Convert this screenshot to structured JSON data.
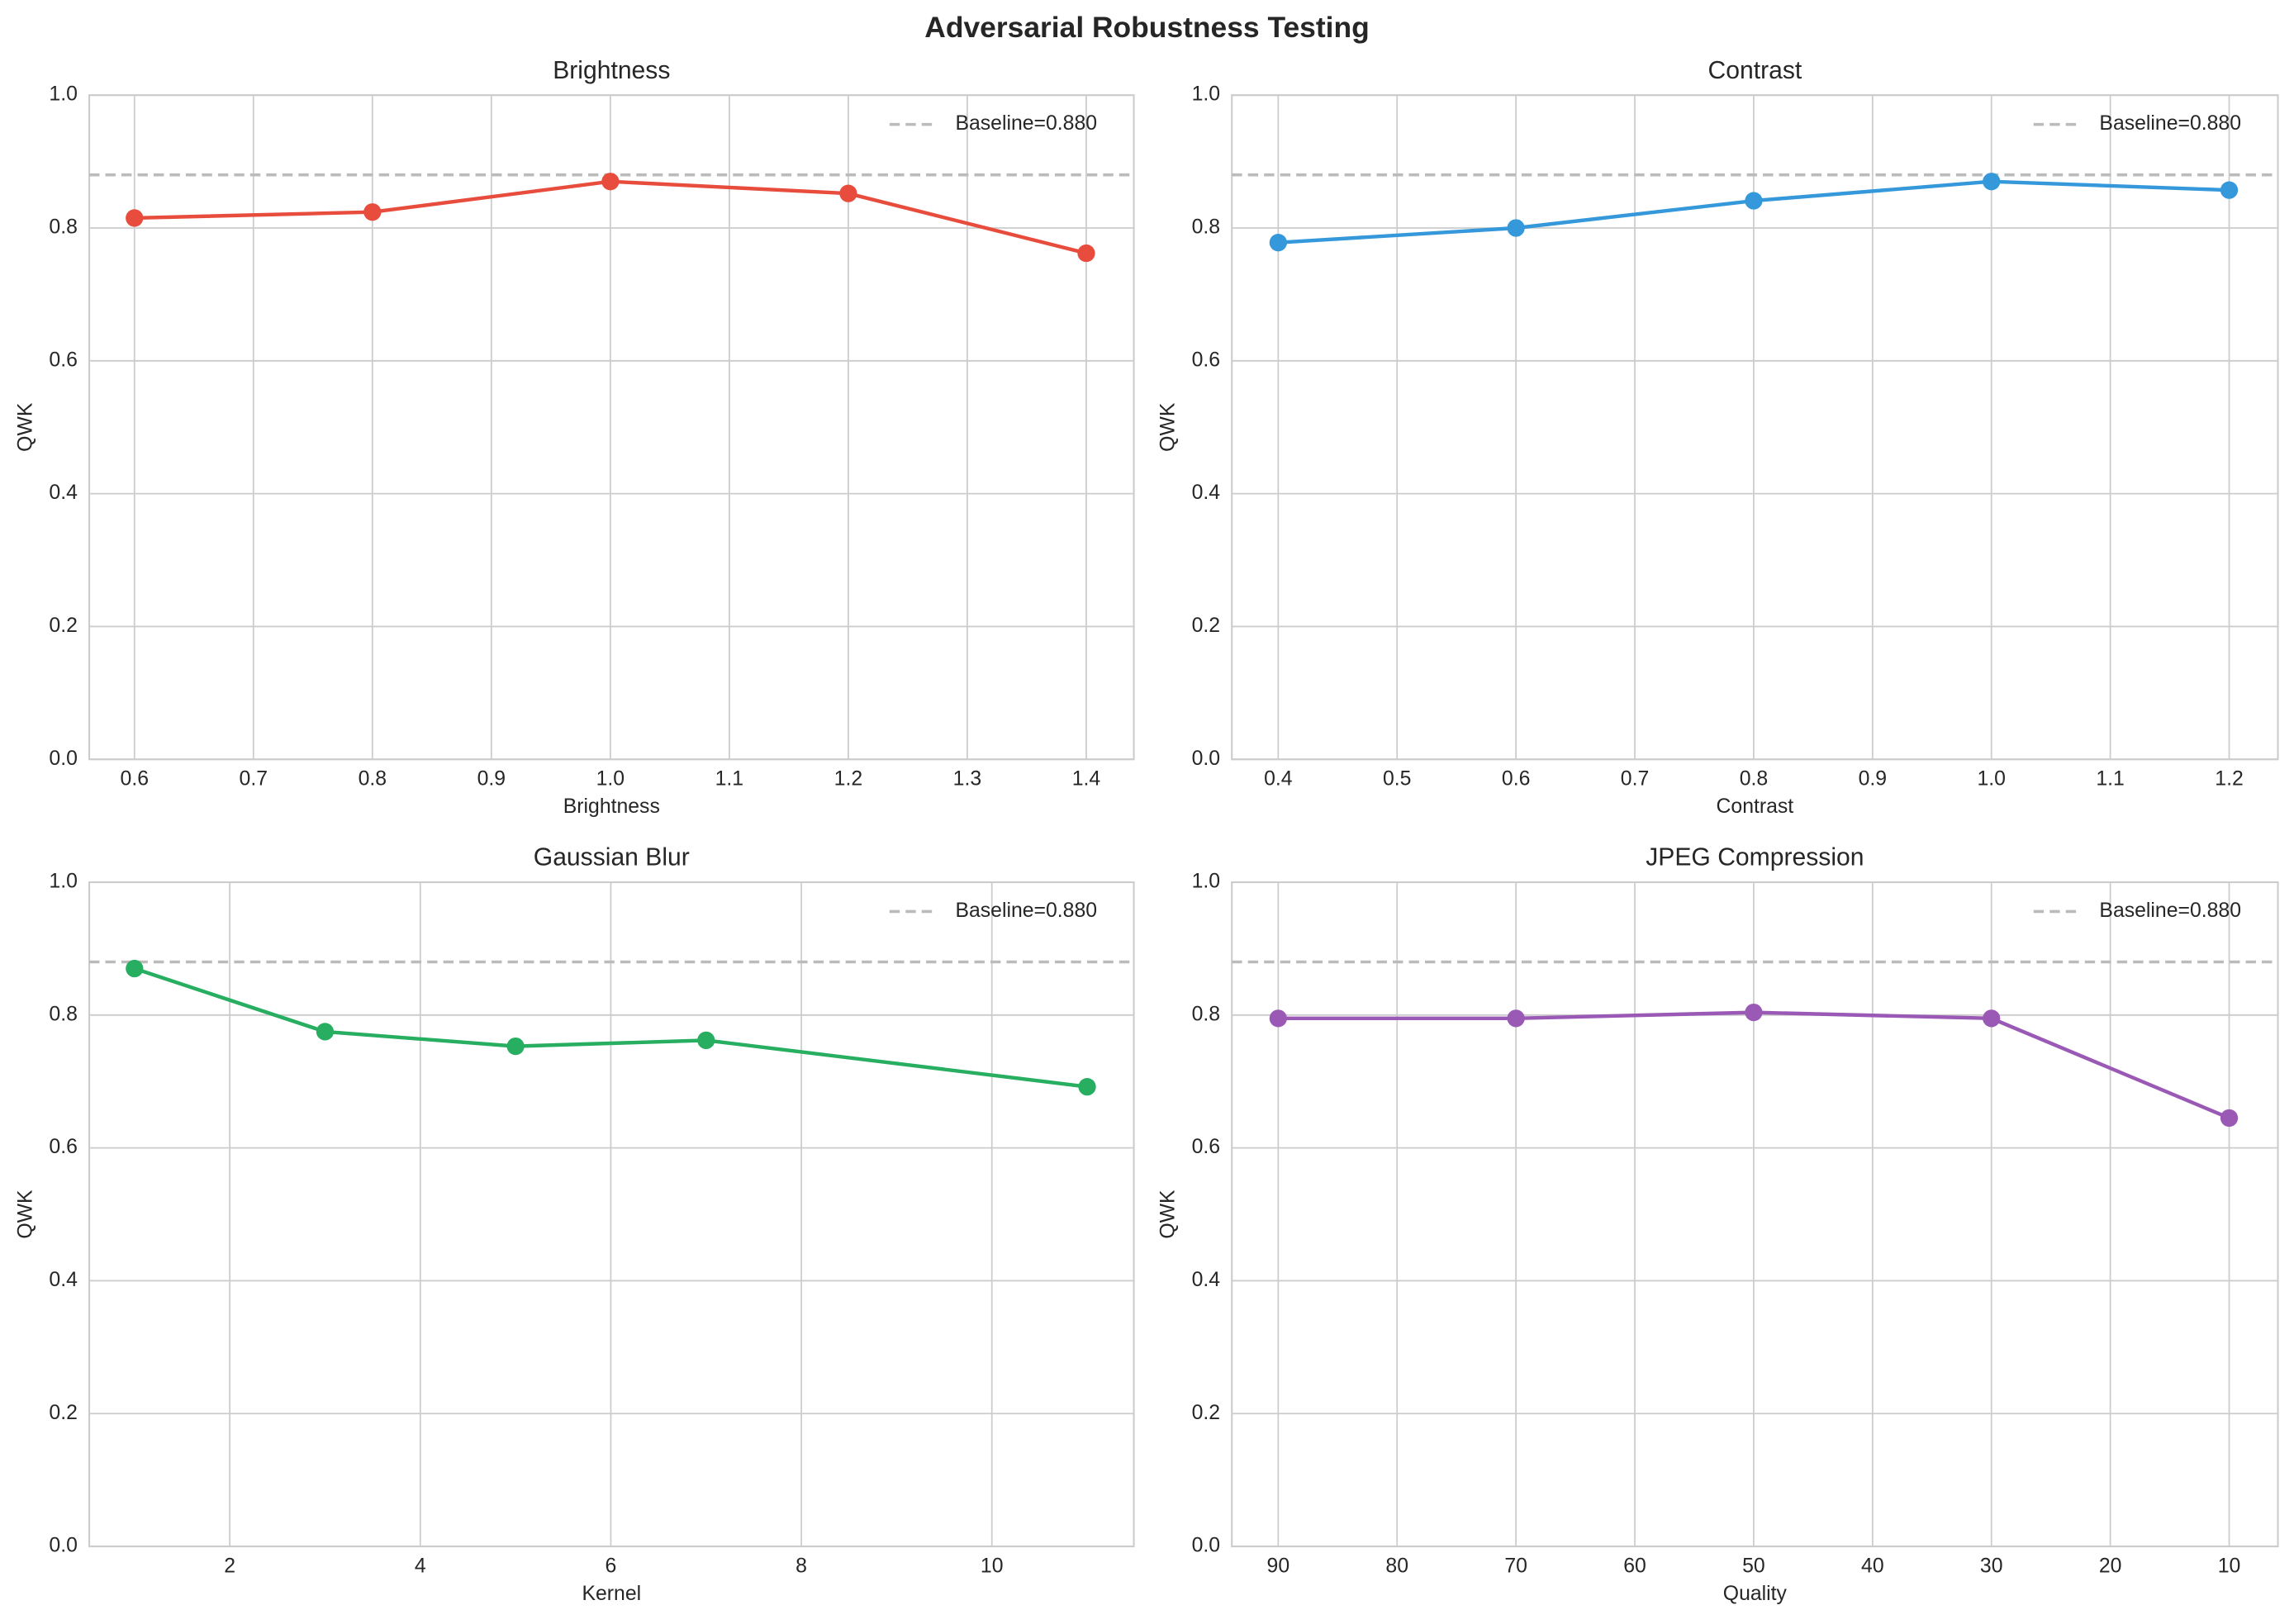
{
  "title": "Adversarial Robustness Testing",
  "chart_data": [
    {
      "type": "line",
      "title": "Brightness",
      "xlabel": "Brightness",
      "ylabel": "QWK",
      "x": [
        0.6,
        0.8,
        1.0,
        1.2,
        1.4
      ],
      "series": [
        {
          "color": "#e74c3c",
          "values": [
            0.815,
            0.824,
            0.87,
            0.852,
            0.762
          ]
        }
      ],
      "hline": {
        "name": "Baseline=0.880",
        "value": 0.88,
        "color": "#bbbbbb"
      },
      "xlim": [
        0.562,
        1.44
      ],
      "xticks": [
        0.6,
        0.7,
        0.8,
        0.9,
        {
          "value": 1.0,
          "label": "1.0"
        },
        1.1,
        1.2,
        1.3,
        1.4
      ],
      "ylim": [
        0,
        1
      ],
      "yticks": [
        {
          "value": 0,
          "label": "0.0"
        },
        0.2,
        0.4,
        0.6,
        0.8,
        {
          "value": 1,
          "label": "1.0"
        }
      ],
      "grid": true,
      "legend": "upper right"
    },
    {
      "type": "line",
      "title": "Contrast",
      "xlabel": "Contrast",
      "ylabel": "QWK",
      "x": [
        0.4,
        0.6,
        0.8,
        1.0,
        1.2
      ],
      "series": [
        {
          "color": "#3498db",
          "values": [
            0.778,
            0.8,
            0.841,
            0.87,
            0.857
          ]
        }
      ],
      "hline": {
        "name": "Baseline=0.880",
        "value": 0.88,
        "color": "#bbbbbb"
      },
      "xlim": [
        0.361,
        1.241
      ],
      "xticks": [
        0.4,
        0.5,
        0.6,
        0.7,
        0.8,
        0.9,
        {
          "value": 1.0,
          "label": "1.0"
        },
        1.1,
        1.2
      ],
      "ylim": [
        0,
        1
      ],
      "yticks": [
        {
          "value": 0,
          "label": "0.0"
        },
        0.2,
        0.4,
        0.6,
        0.8,
        {
          "value": 1,
          "label": "1.0"
        }
      ],
      "grid": true,
      "legend": "upper right"
    },
    {
      "type": "line",
      "title": "Gaussian Blur",
      "xlabel": "Kernel",
      "ylabel": "QWK",
      "x": [
        1,
        3,
        5,
        7,
        11
      ],
      "series": [
        {
          "color": "#27ae60",
          "values": [
            0.87,
            0.775,
            0.753,
            0.762,
            0.692
          ]
        }
      ],
      "hline": {
        "name": "Baseline=0.880",
        "value": 0.88,
        "color": "#bbbbbb"
      },
      "xlim": [
        0.525,
        11.49
      ],
      "xticks": [
        2,
        4,
        6,
        8,
        10
      ],
      "ylim": [
        0,
        1
      ],
      "yticks": [
        {
          "value": 0,
          "label": "0.0"
        },
        0.2,
        0.4,
        0.6,
        0.8,
        {
          "value": 1,
          "label": "1.0"
        }
      ],
      "grid": true,
      "legend": "upper right"
    },
    {
      "type": "line",
      "title": "JPEG Compression",
      "xlabel": "Quality",
      "ylabel": "QWK",
      "x": [
        90,
        70,
        50,
        30,
        10
      ],
      "series": [
        {
          "color": "#9b59b6",
          "values": [
            0.795,
            0.795,
            0.804,
            0.795,
            0.645
          ]
        }
      ],
      "hline": {
        "name": "Baseline=0.880",
        "value": 0.88,
        "color": "#bbbbbb"
      },
      "xlim": [
        93.9,
        5.9
      ],
      "xticks": [
        90,
        80,
        70,
        60,
        50,
        40,
        30,
        20,
        10
      ],
      "ylim": [
        0,
        1
      ],
      "yticks": [
        {
          "value": 0,
          "label": "0.0"
        },
        0.2,
        0.4,
        0.6,
        0.8,
        {
          "value": 1,
          "label": "1.0"
        }
      ],
      "grid": true,
      "legend": "upper right"
    }
  ]
}
